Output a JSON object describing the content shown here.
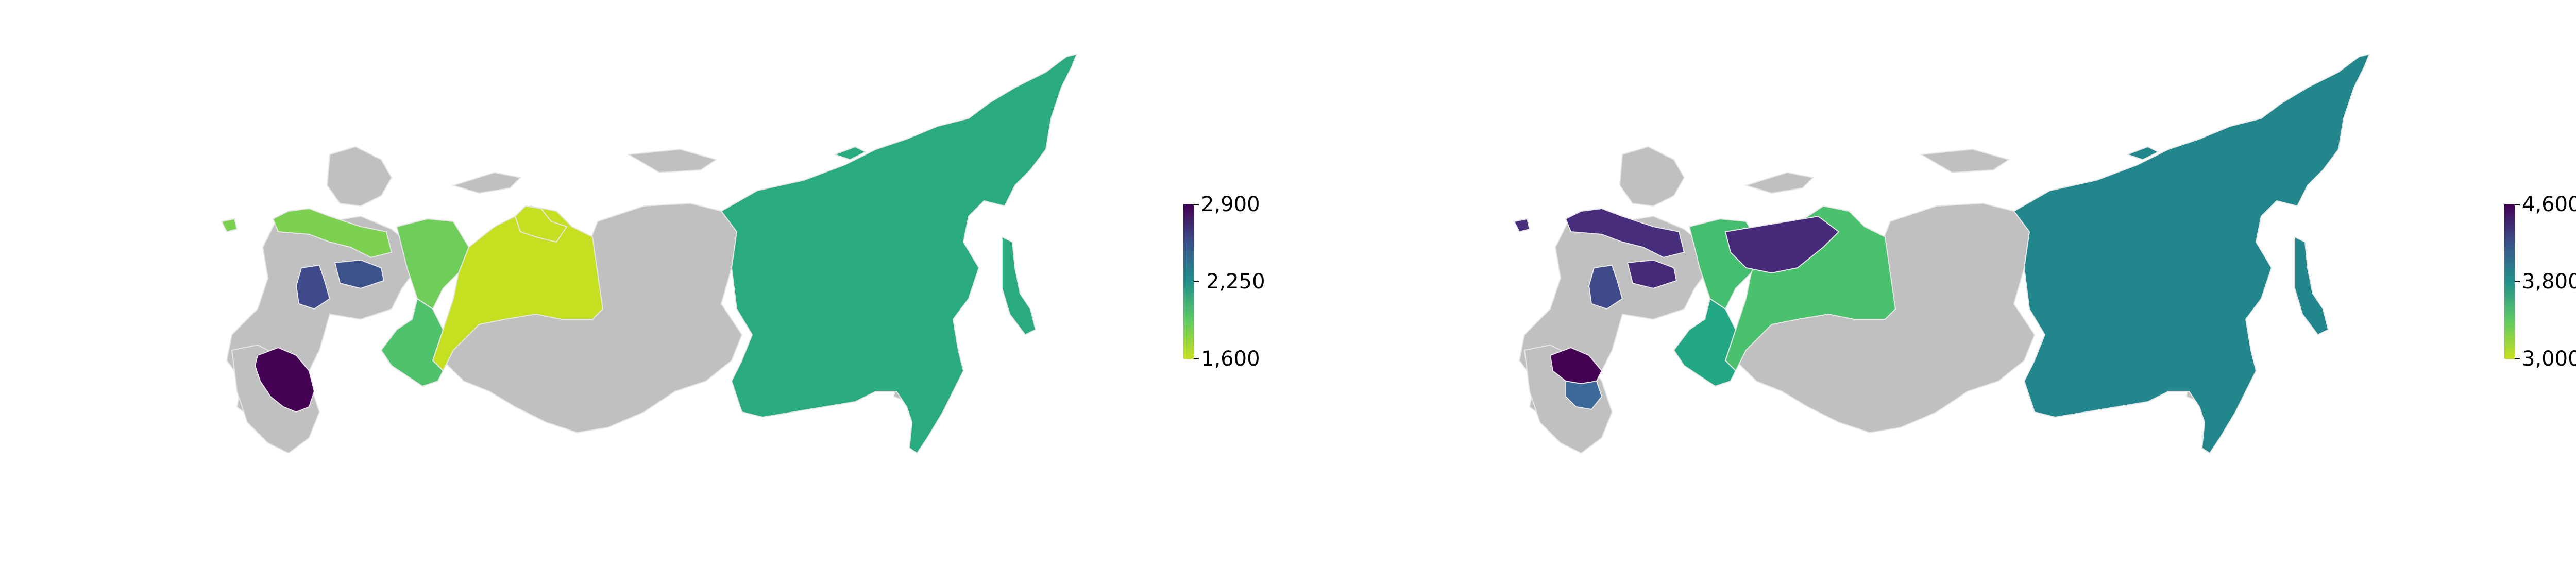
{
  "colors": {
    "no_data": "#c0c0c0",
    "border": "#e6e6e6",
    "viridis_dark": "#440154",
    "viridis_mid": "#21918c",
    "viridis_light": "#fde725"
  },
  "maps": [
    {
      "colorbar": {
        "max_label": "2,900",
        "mid_label": "2,250",
        "min_label": "1,600",
        "colors": [
          "#440154",
          "#3b528b",
          "#21918c",
          "#5ec962",
          "#c8e020"
        ]
      },
      "regions": {
        "far_east": "#2aaa80",
        "ural_south": "#4ec36b",
        "ural_north": "#6fcd5a",
        "siberia_west": "#c5e021",
        "northwest": "#7cd250",
        "central_a": "#3e4a89",
        "central_b": "#3b528b",
        "south": "#440154"
      }
    },
    {
      "colorbar": {
        "max_label": "4,600",
        "mid_label": "3,800",
        "min_label": "3,000",
        "colors": [
          "#440154",
          "#3b528b",
          "#21918c",
          "#5ec962",
          "#c8e020"
        ]
      },
      "regions": {
        "far_east": "#21878c",
        "ural_south": "#22a884",
        "ural_north": "#44bf70",
        "siberia_west": "#4ac16d",
        "northwest": "#472d7b",
        "central_a": "#3e4a89",
        "central_b": "#482878",
        "south": "#440154",
        "south_b": "#3b6a9a",
        "yamal": "#482a7a"
      }
    }
  ]
}
